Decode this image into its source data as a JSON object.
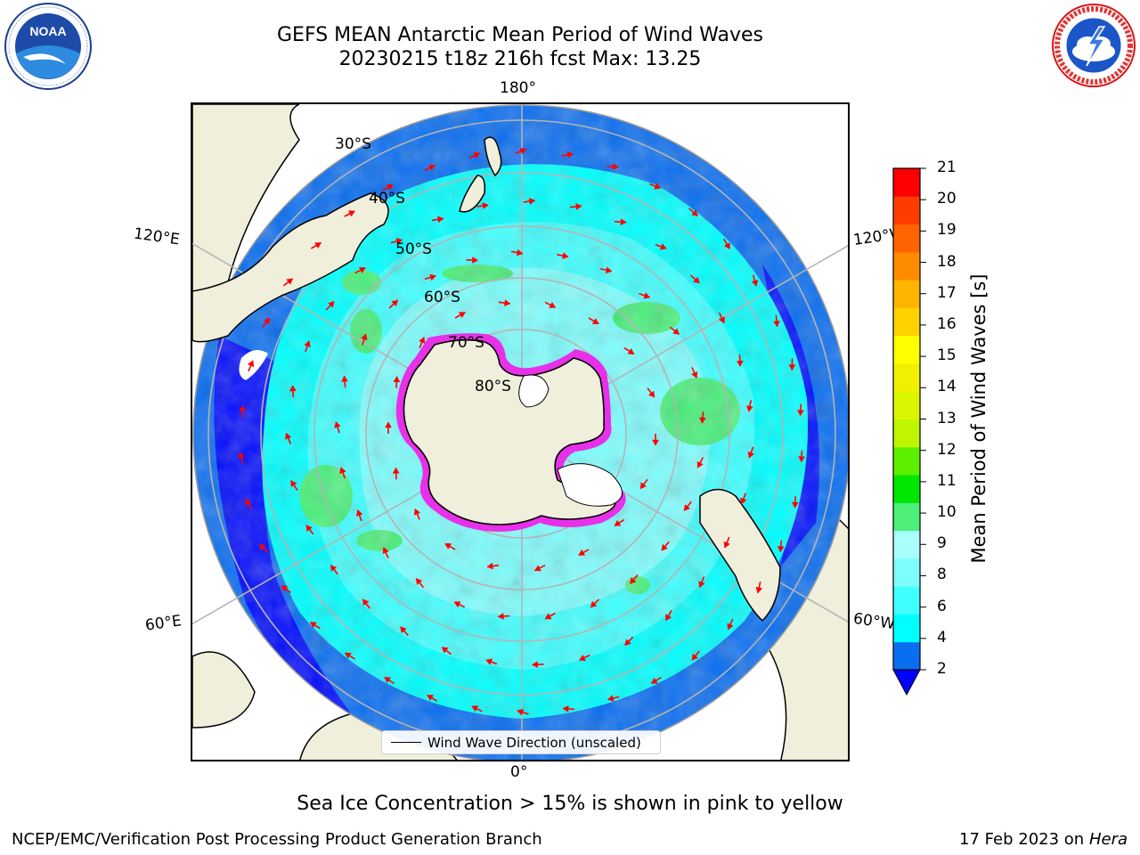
{
  "header": {
    "title_line1": "GEFS MEAN Antarctic Mean Period of Wind Waves",
    "title_line2": "20230215 t18z 216h fcst   Max: 13.25"
  },
  "logos": {
    "left": {
      "text": "NOAA",
      "ring_text": "NATIONAL OCEANIC AND ATMOSPHERIC ADMINISTRATION · U.S. DEPARTMENT OF COMMERCE"
    },
    "right": {
      "ring_text": "NATIONAL WEATHER SERVICE"
    }
  },
  "map": {
    "longitude_labels": {
      "top": "180°",
      "bottom": "0°",
      "left_upper": "120°E",
      "left_lower": "60°E",
      "right_upper": "120°W",
      "right_lower": "60°W"
    },
    "latitude_labels": [
      "30°S",
      "40°S",
      "50°S",
      "60°S",
      "70°S",
      "80°S"
    ],
    "legend": {
      "label": "Wind Wave Direction (unscaled)"
    },
    "colors": {
      "ocean_deep": "#0000ff",
      "ocean_low": "#0a6ef0",
      "ocean_mid": "#00ffff",
      "ocean_high": "#7dfdfd",
      "wave_green": "#48f07a",
      "land": "#efefdc",
      "sea_ice_pink": "#e830e8",
      "arrows": "#ff0000",
      "graticule": "#b4b4b4"
    }
  },
  "colorbar": {
    "label": "Mean Period of Wind Waves [s]",
    "ticks": [
      "21",
      "20",
      "19",
      "18",
      "17",
      "16",
      "15",
      "14",
      "13",
      "12",
      "11",
      "10",
      "9",
      "8",
      "6",
      "4",
      "2"
    ],
    "colors_bottom_to_top": [
      "#0a6ef0",
      "#00ffff",
      "#40ffff",
      "#7dfdfd",
      "#a8fffc",
      "#4ef07a",
      "#00e600",
      "#5cf000",
      "#bef500",
      "#dcf500",
      "#f0f000",
      "#ffff00",
      "#ffd200",
      "#ffb400",
      "#ff8c00",
      "#ff6400",
      "#ff3c00",
      "#ff0000"
    ],
    "extend_color": "#0000ff"
  },
  "footer": {
    "note": "Sea Ice Concentration > 15% is shown in pink to yellow",
    "credit_left": "NCEP/EMC/Verification Post Processing Product Generation Branch",
    "credit_date": "17 Feb 2023 on",
    "credit_machine": "Hera"
  }
}
